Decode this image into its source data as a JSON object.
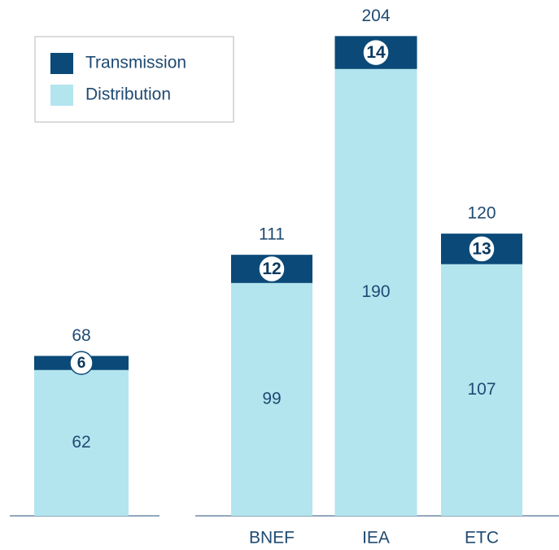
{
  "chart_data": {
    "type": "stacked_bar",
    "categories": [
      null,
      "BNEF",
      "IEA",
      "ETC"
    ],
    "series": [
      {
        "name": "Distribution",
        "color": "#b3e5ef",
        "values": [
          62,
          99,
          190,
          107
        ]
      },
      {
        "name": "Transmission",
        "color": "#0b4a78",
        "values": [
          6,
          12,
          14,
          13
        ]
      }
    ],
    "totals": [
      68,
      111,
      204,
      120
    ],
    "ylim": [
      0,
      210
    ],
    "legend": "top-left"
  }
}
